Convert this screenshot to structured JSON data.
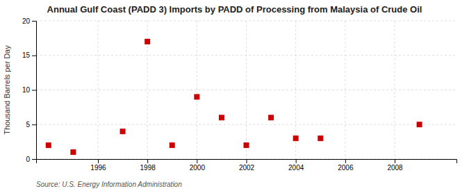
{
  "chart_data": {
    "type": "scatter",
    "title": "Annual Gulf Coast (PADD 3) Imports by PADD of Processing from Malaysia of Crude Oil",
    "ylabel": "Thousand Barrels per Day",
    "annotations": [
      "Source: U.S. Energy Information Administration"
    ],
    "x": [
      1994,
      1995,
      1997,
      1998,
      1999,
      2000,
      2001,
      2002,
      2003,
      2004,
      2005,
      2009
    ],
    "values": [
      2,
      1,
      4,
      17,
      2,
      9,
      6,
      2,
      6,
      3,
      3,
      5
    ],
    "color": "#cc0000",
    "marker": "square",
    "xlim": [
      1993.5,
      2010.5
    ],
    "ylim": [
      0,
      20
    ],
    "xticks": [
      1996,
      1998,
      2000,
      2002,
      2004,
      2006,
      2008
    ],
    "yticks": [
      0,
      5,
      10,
      15,
      20
    ],
    "grid": true
  }
}
